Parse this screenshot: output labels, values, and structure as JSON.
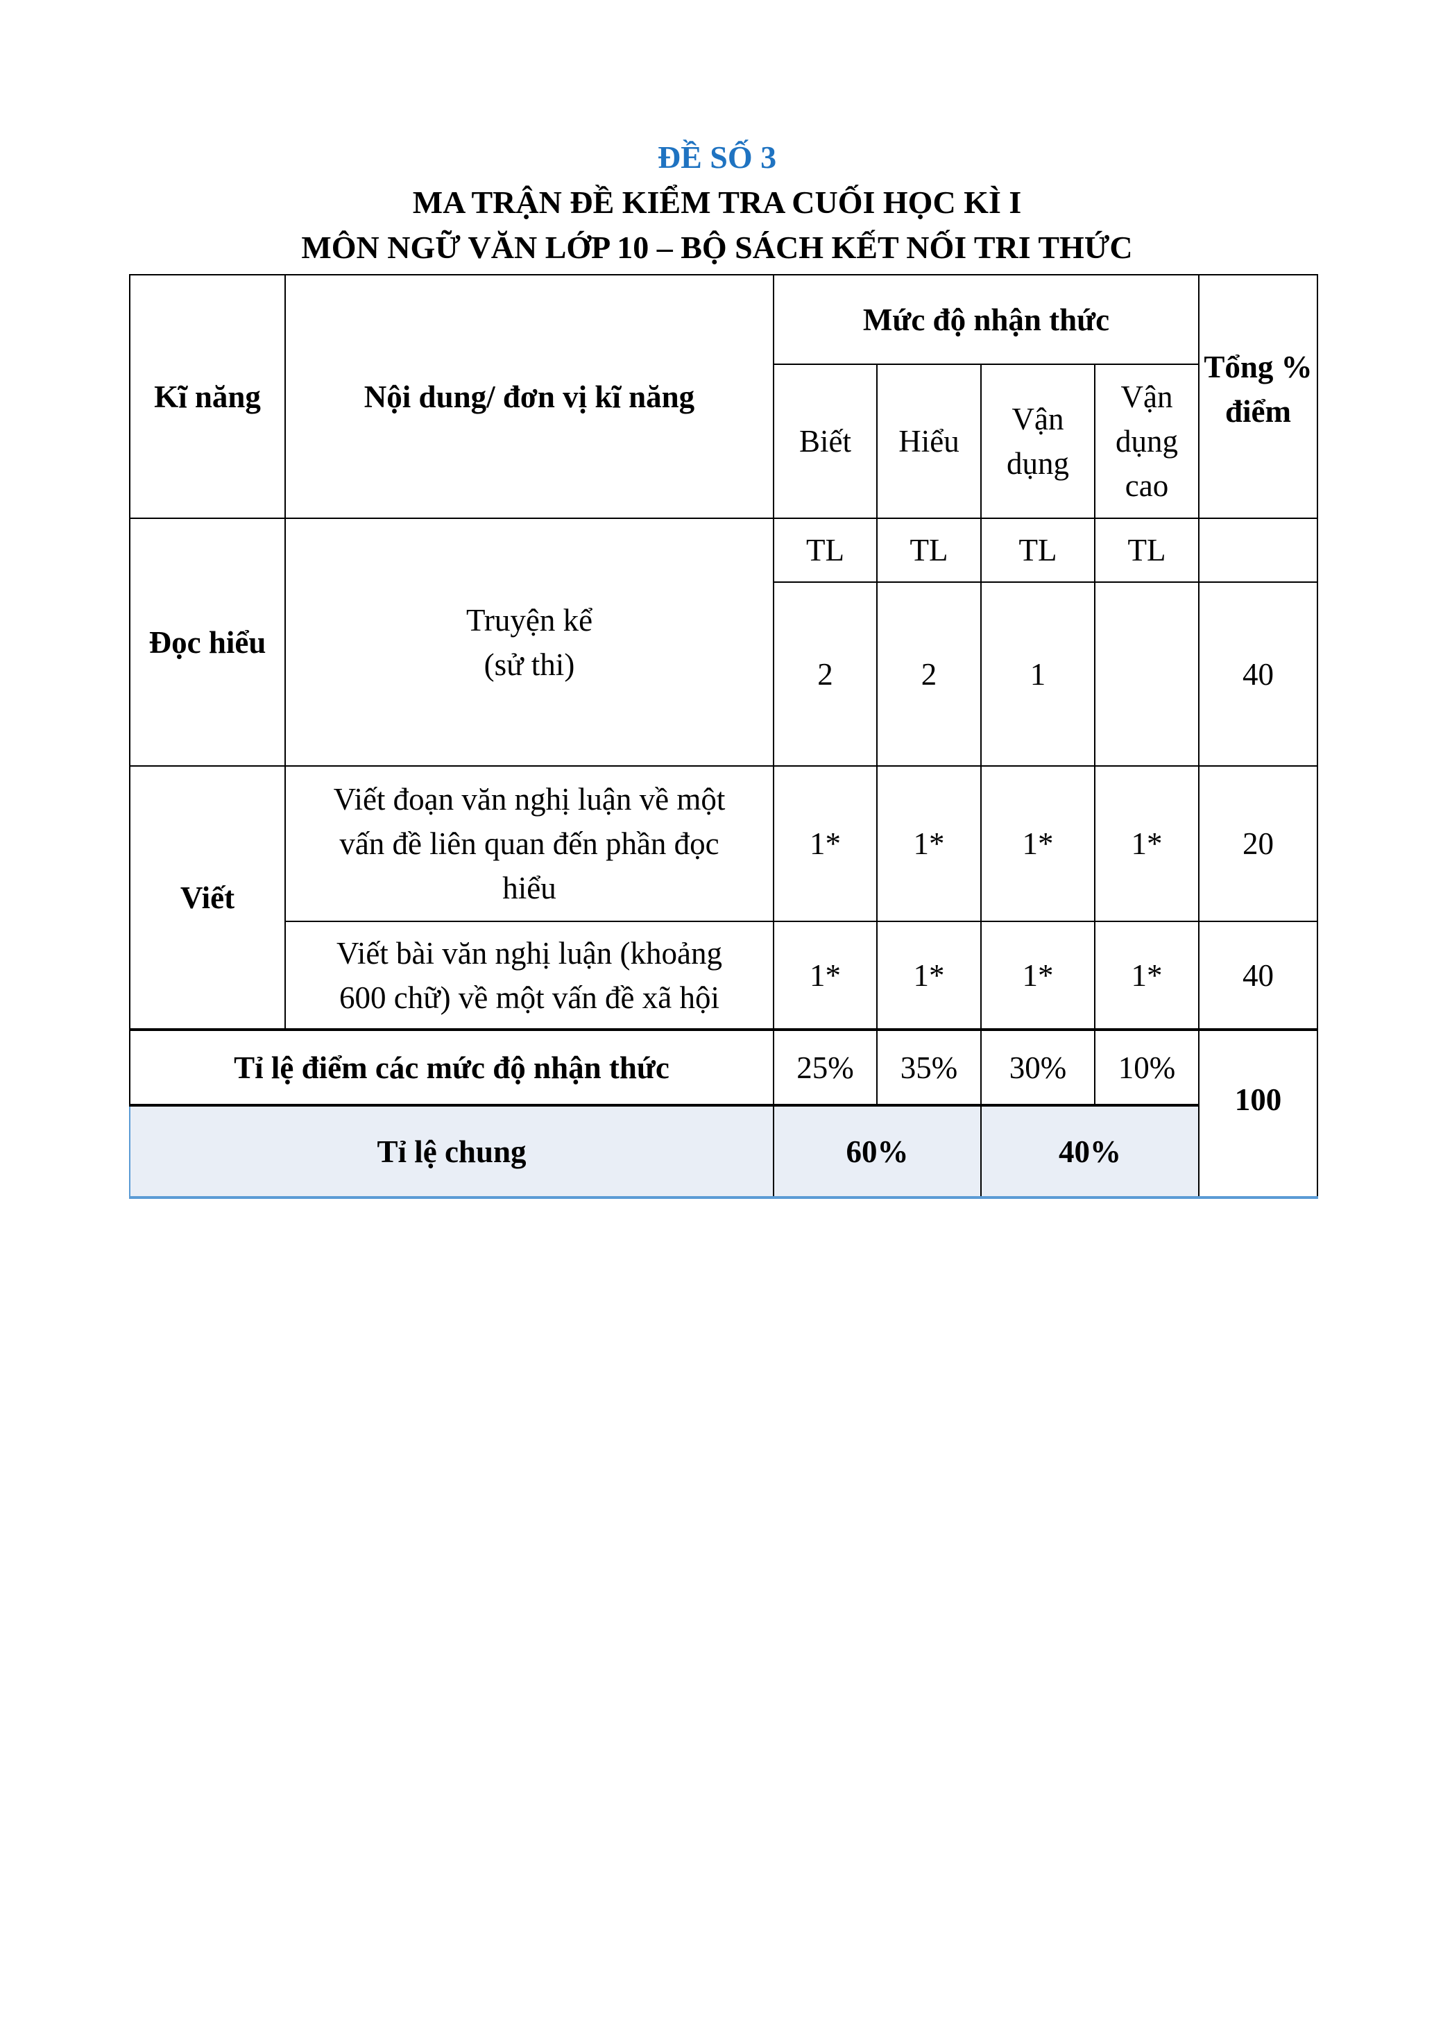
{
  "header": {
    "exam_number": "ĐỀ SỐ 3",
    "title_line1": "MA TRẬN ĐỀ KIỂM TRA CUỐI HỌC KÌ I",
    "title_line2": "MÔN NGỮ VĂN LỚP 10 – BỘ SÁCH KẾT NỐI TRI THỨC"
  },
  "colors": {
    "title_blue": "#1f73c1",
    "summary_fill": "#e9eef6",
    "summary_border": "#5b9bd5"
  },
  "table": {
    "headers": {
      "skill": "Kĩ năng",
      "content": "Nội dung/ đơn vị kĩ năng",
      "levels_group": "Mức độ nhận thức",
      "total": "Tổng % điểm",
      "levels": [
        "Biết",
        "Hiểu",
        "Vận dụng",
        "Vận dụng cao"
      ],
      "format": [
        "TL",
        "TL",
        "TL",
        "TL"
      ]
    },
    "rows": [
      {
        "skill": "Đọc hiểu",
        "content": "Truyện kể (sử thi)",
        "values": [
          "2",
          "2",
          "1",
          ""
        ],
        "total": "40"
      },
      {
        "skill": "Viết",
        "content": "Viết đoạn văn nghị luận về một vấn đề liên quan đến phần đọc hiểu",
        "values": [
          "1*",
          "1*",
          "1*",
          "1*"
        ],
        "total": "20"
      },
      {
        "content": "Viết bài văn nghị luận (khoảng 600 chữ) về một vấn đề xã hội",
        "values": [
          "1*",
          "1*",
          "1*",
          "1*"
        ],
        "total": "40"
      }
    ],
    "level_ratio": {
      "label": "Tỉ lệ điểm các mức độ nhận thức",
      "values": [
        "25%",
        "35%",
        "30%",
        "10%"
      ]
    },
    "overall_ratio": {
      "label": "Tỉ lệ chung",
      "values": [
        "60%",
        "40%"
      ]
    },
    "grand_total": "100"
  }
}
